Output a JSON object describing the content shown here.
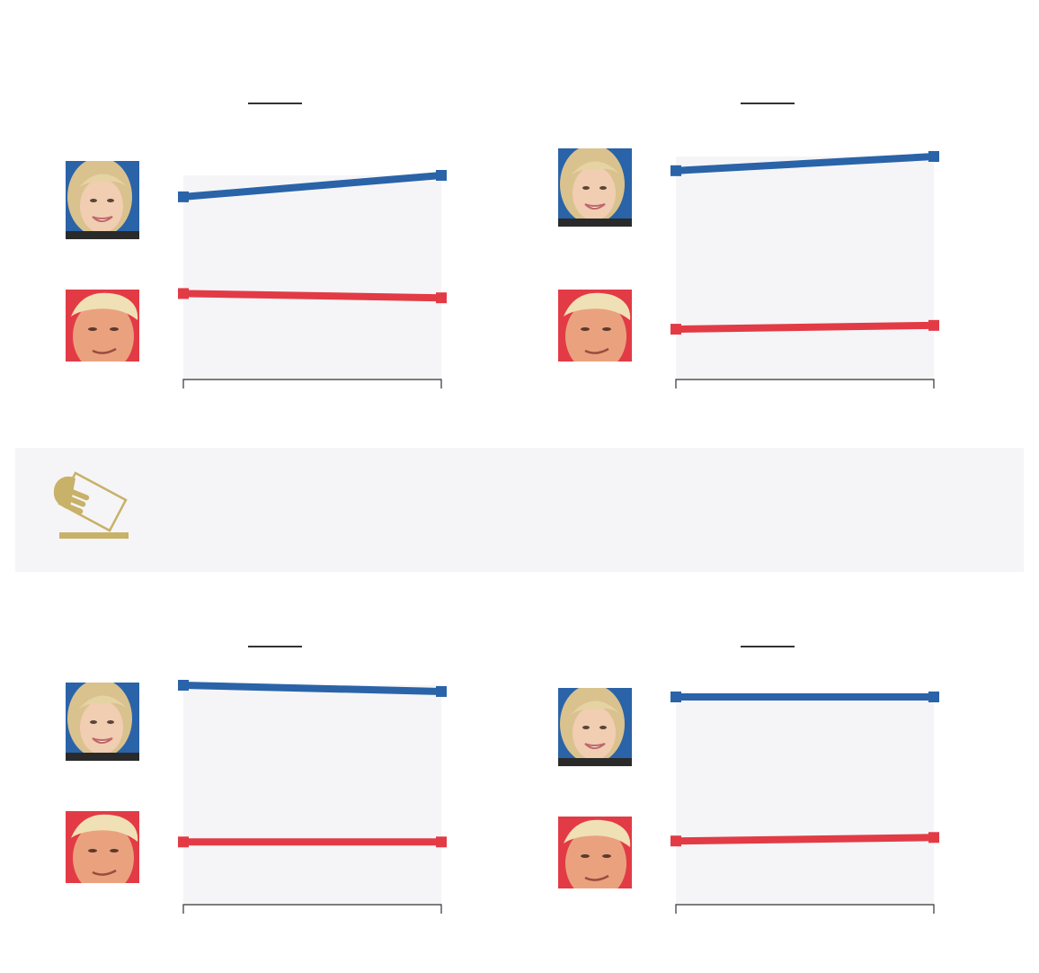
{
  "colors": {
    "democrat": "#2a63a8",
    "republican": "#e23b46",
    "plot_background": "#f5f5f7",
    "banner_background": "#f5f5f7",
    "banner_icon": "#c8b168",
    "axis": "#333333"
  },
  "portraits": {
    "top": {
      "icon": "hillary-clinton-portrait",
      "background": "#2a63a8"
    },
    "bottom": {
      "icon": "donald-trump-portrait",
      "background": "#e23b46"
    }
  },
  "banner": {
    "icon": "ballot-box-icon"
  },
  "chart_data": [
    {
      "type": "line",
      "ylim": [
        30,
        55
      ],
      "series": [
        {
          "values": [
            47,
            49
          ]
        },
        {
          "values": [
            38,
            37.6
          ]
        }
      ]
    },
    {
      "type": "line",
      "ylim": [
        28,
        55
      ],
      "series": [
        {
          "values": [
            50,
            51.5
          ]
        },
        {
          "values": [
            33.3,
            33.7
          ]
        }
      ]
    },
    {
      "type": "line",
      "ylim": [
        28,
        55
      ],
      "series": [
        {
          "values": [
            52.5,
            51.8
          ]
        },
        {
          "values": [
            35,
            35
          ]
        }
      ]
    },
    {
      "type": "line",
      "ylim": [
        28,
        55
      ],
      "series": [
        {
          "values": [
            51.5,
            51.5
          ]
        },
        {
          "values": [
            35.2,
            35.6
          ]
        }
      ]
    }
  ]
}
